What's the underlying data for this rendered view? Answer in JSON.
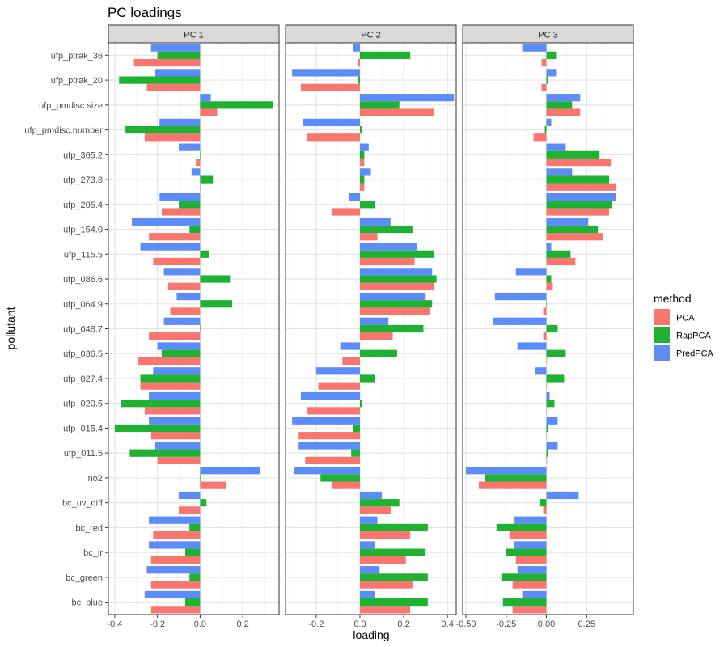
{
  "chart_data": {
    "type": "bar",
    "orientation": "horizontal",
    "title": "PC loadings",
    "xlabel": "loading",
    "ylabel": "pollutant",
    "legend": {
      "title": "method",
      "position": "right",
      "entries": [
        "PCA",
        "RapPCA",
        "PredPCA"
      ]
    },
    "colors": {
      "PCA": "#F8766D",
      "RapPCA": "#1FB232",
      "PredPCA": "#5B8CF7"
    },
    "categories": [
      "ufp_ptrak_36",
      "ufp_ptrak_20",
      "ufp_pmdisc.size",
      "ufp_pmdisc.number",
      "ufp_365.2",
      "ufp_273.8",
      "ufp_205.4",
      "ufp_154.0",
      "ufp_115.5",
      "ufp_086.6",
      "ufp_064.9",
      "ufp_048.7",
      "ufp_036.5",
      "ufp_027.4",
      "ufp_020.5",
      "ufp_015.4",
      "ufp_011.5",
      "no2",
      "bc_uv_diff",
      "bc_red",
      "bc_ir",
      "bc_green",
      "bc_blue"
    ],
    "panels": [
      {
        "label": "PC 1",
        "xlim": [
          -0.43,
          0.37
        ],
        "ticks": [
          -0.4,
          -0.2,
          0.0,
          0.2
        ],
        "tick_labels": [
          "-0.4",
          "-0.2",
          "0.0",
          "0.2"
        ],
        "series": [
          {
            "name": "PCA",
            "values": [
              -0.31,
              -0.25,
              0.08,
              -0.26,
              -0.02,
              0.0,
              -0.18,
              -0.24,
              -0.22,
              -0.15,
              -0.14,
              -0.24,
              -0.29,
              -0.28,
              -0.26,
              -0.23,
              -0.2,
              0.12,
              -0.1,
              -0.22,
              -0.23,
              -0.23,
              -0.23
            ]
          },
          {
            "name": "RapPCA",
            "values": [
              -0.2,
              -0.38,
              0.34,
              -0.35,
              0.0,
              0.06,
              -0.1,
              -0.05,
              0.04,
              0.14,
              0.15,
              0.0,
              -0.18,
              -0.28,
              -0.37,
              -0.4,
              -0.33,
              0.0,
              0.03,
              -0.05,
              -0.07,
              -0.05,
              -0.07
            ]
          },
          {
            "name": "PredPCA",
            "values": [
              -0.23,
              -0.21,
              0.05,
              -0.19,
              -0.1,
              -0.04,
              -0.19,
              -0.32,
              -0.28,
              -0.17,
              -0.11,
              -0.17,
              -0.2,
              -0.22,
              -0.24,
              -0.24,
              -0.21,
              0.28,
              -0.1,
              -0.24,
              -0.24,
              -0.25,
              -0.26
            ]
          }
        ]
      },
      {
        "label": "PC 2",
        "xlim": [
          -0.34,
          0.44
        ],
        "ticks": [
          -0.2,
          0.0,
          0.2,
          0.4
        ],
        "tick_labels": [
          "-0.2",
          "0.0",
          "0.2",
          "0.4"
        ],
        "series": [
          {
            "name": "PCA",
            "values": [
              -0.01,
              -0.27,
              0.34,
              -0.24,
              0.02,
              0.02,
              -0.13,
              0.08,
              0.25,
              0.34,
              0.32,
              0.15,
              -0.08,
              -0.19,
              -0.24,
              -0.28,
              -0.25,
              -0.13,
              0.14,
              0.23,
              0.21,
              0.24,
              0.23
            ]
          },
          {
            "name": "RapPCA",
            "values": [
              0.23,
              -0.01,
              0.18,
              0.01,
              0.02,
              0.02,
              0.07,
              0.24,
              0.34,
              0.35,
              0.33,
              0.29,
              0.17,
              0.07,
              0.01,
              -0.03,
              -0.04,
              -0.18,
              0.18,
              0.31,
              0.3,
              0.31,
              0.31
            ]
          },
          {
            "name": "PredPCA",
            "values": [
              -0.03,
              -0.31,
              0.43,
              -0.26,
              0.04,
              0.05,
              -0.05,
              0.14,
              0.26,
              0.33,
              0.3,
              0.13,
              -0.09,
              -0.2,
              -0.27,
              -0.31,
              -0.28,
              -0.3,
              0.1,
              0.08,
              0.07,
              0.09,
              0.07
            ]
          }
        ]
      },
      {
        "label": "PC 3",
        "xlim": [
          -0.52,
          0.54
        ],
        "ticks": [
          -0.5,
          -0.25,
          0.0,
          0.25
        ],
        "tick_labels": [
          "-0.50",
          "-0.25",
          "0.00",
          "0.25"
        ],
        "series": [
          {
            "name": "PCA",
            "values": [
              -0.03,
              -0.03,
              0.21,
              -0.08,
              0.4,
              0.43,
              0.39,
              0.35,
              0.18,
              0.04,
              -0.02,
              -0.02,
              0.0,
              0.0,
              0.0,
              0.0,
              0.0,
              -0.42,
              -0.02,
              -0.23,
              -0.19,
              -0.21,
              -0.21
            ]
          },
          {
            "name": "RapPCA",
            "values": [
              0.06,
              0.01,
              0.16,
              -0.01,
              0.33,
              0.39,
              0.41,
              0.32,
              0.15,
              0.03,
              0.0,
              0.07,
              0.12,
              0.11,
              0.05,
              0.01,
              0.01,
              -0.38,
              -0.04,
              -0.31,
              -0.25,
              -0.28,
              -0.27
            ]
          },
          {
            "name": "PredPCA",
            "values": [
              -0.15,
              0.06,
              0.21,
              0.03,
              0.12,
              0.16,
              0.43,
              0.26,
              0.03,
              -0.19,
              -0.32,
              -0.33,
              -0.18,
              -0.07,
              0.02,
              0.07,
              0.07,
              -0.5,
              0.2,
              -0.2,
              -0.2,
              -0.18,
              -0.15
            ]
          }
        ]
      }
    ]
  }
}
